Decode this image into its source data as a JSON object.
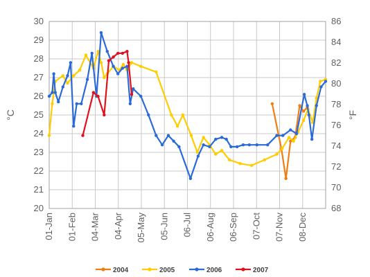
{
  "chart_data": {
    "type": "line",
    "title": "",
    "x_ticks": [
      "01-Jan",
      "01-Feb",
      "04-Mar",
      "04-Apr",
      "05-May",
      "05-Jun",
      "06-Jul",
      "06-Aug",
      "06-Sep",
      "07-Oct",
      "07-Nov",
      "08-Dec"
    ],
    "y_left": {
      "label": "°C",
      "min": 20,
      "max": 30,
      "ticks": [
        "20",
        "21",
        "22",
        "23",
        "24",
        "25",
        "26",
        "27",
        "28",
        "29",
        "30"
      ]
    },
    "y_right": {
      "label": "°F",
      "min": 68,
      "max": 86,
      "ticks": [
        "68",
        "70",
        "72",
        "74",
        "76",
        "78",
        "80",
        "82",
        "84",
        "86"
      ]
    },
    "grid": true,
    "legend_position": "bottom",
    "series": [
      {
        "name": "2004",
        "color": "#f07d12",
        "points": [
          [
            292,
            25.6
          ],
          [
            304,
            23.2
          ],
          [
            310,
            21.6
          ],
          [
            316,
            23.6
          ],
          [
            322,
            23.8
          ],
          [
            328,
            25.5
          ],
          [
            333,
            25.2
          ],
          [
            338,
            25.4
          ]
        ]
      },
      {
        "name": "2005",
        "color": "#ffcc00",
        "points": [
          [
            0,
            23.9
          ],
          [
            4,
            25.6
          ],
          [
            8,
            26.8
          ],
          [
            18,
            27.1
          ],
          [
            24,
            26.7
          ],
          [
            32,
            27.1
          ],
          [
            40,
            27.4
          ],
          [
            48,
            28.2
          ],
          [
            58,
            27.5
          ],
          [
            64,
            28.4
          ],
          [
            68,
            27.8
          ],
          [
            72,
            27.0
          ],
          [
            76,
            27.2
          ],
          [
            84,
            27.6
          ],
          [
            92,
            27.4
          ],
          [
            97,
            27.7
          ],
          [
            102,
            27.4
          ],
          [
            108,
            27.8
          ],
          [
            120,
            27.6
          ],
          [
            140,
            27.3
          ],
          [
            160,
            25.0
          ],
          [
            168,
            24.4
          ],
          [
            175,
            25.0
          ],
          [
            186,
            23.9
          ],
          [
            194,
            23.0
          ],
          [
            202,
            23.8
          ],
          [
            210,
            23.4
          ],
          [
            218,
            22.9
          ],
          [
            226,
            23.1
          ],
          [
            236,
            22.6
          ],
          [
            250,
            22.4
          ],
          [
            265,
            22.3
          ],
          [
            282,
            22.6
          ],
          [
            298,
            22.9
          ],
          [
            305,
            23.2
          ],
          [
            314,
            23.8
          ],
          [
            320,
            23.6
          ],
          [
            326,
            24.1
          ],
          [
            333,
            24.7
          ],
          [
            339,
            25.3
          ],
          [
            345,
            24.6
          ],
          [
            350,
            25.9
          ],
          [
            355,
            26.8
          ],
          [
            362,
            26.9
          ]
        ]
      },
      {
        "name": "2006",
        "color": "#2a6ad8",
        "points": [
          [
            0,
            26.0
          ],
          [
            4,
            26.2
          ],
          [
            6,
            27.2
          ],
          [
            8,
            26.2
          ],
          [
            12,
            25.7
          ],
          [
            18,
            26.5
          ],
          [
            24,
            27.1
          ],
          [
            28,
            27.8
          ],
          [
            32,
            24.4
          ],
          [
            36,
            25.6
          ],
          [
            42,
            25.6
          ],
          [
            50,
            26.9
          ],
          [
            56,
            28.3
          ],
          [
            62,
            26.0
          ],
          [
            68,
            29.4
          ],
          [
            76,
            28.4
          ],
          [
            84,
            27.6
          ],
          [
            90,
            27.2
          ],
          [
            96,
            27.5
          ],
          [
            102,
            27.6
          ],
          [
            106,
            25.6
          ],
          [
            110,
            26.4
          ],
          [
            120,
            26.0
          ],
          [
            130,
            25.0
          ],
          [
            140,
            23.9
          ],
          [
            148,
            23.4
          ],
          [
            156,
            23.9
          ],
          [
            163,
            23.6
          ],
          [
            170,
            23.3
          ],
          [
            185,
            21.6
          ],
          [
            195,
            22.8
          ],
          [
            202,
            23.4
          ],
          [
            210,
            23.3
          ],
          [
            218,
            23.7
          ],
          [
            226,
            23.8
          ],
          [
            232,
            23.7
          ],
          [
            238,
            23.3
          ],
          [
            246,
            23.3
          ],
          [
            254,
            23.4
          ],
          [
            262,
            23.4
          ],
          [
            272,
            23.4
          ],
          [
            286,
            23.4
          ],
          [
            298,
            23.9
          ],
          [
            306,
            23.9
          ],
          [
            316,
            24.2
          ],
          [
            324,
            24.0
          ],
          [
            334,
            26.1
          ],
          [
            338,
            25.5
          ],
          [
            340,
            25.0
          ],
          [
            344,
            23.7
          ],
          [
            350,
            25.5
          ],
          [
            356,
            26.5
          ],
          [
            362,
            26.8
          ]
        ]
      },
      {
        "name": "2007",
        "color": "#e0101c",
        "points": [
          [
            44,
            23.9
          ],
          [
            58,
            26.2
          ],
          [
            64,
            26.0
          ],
          [
            72,
            25.0
          ],
          [
            78,
            27.9
          ],
          [
            84,
            28.1
          ],
          [
            90,
            28.3
          ],
          [
            96,
            28.3
          ],
          [
            102,
            28.4
          ],
          [
            104,
            27.8
          ],
          [
            108,
            26.1
          ]
        ]
      }
    ]
  }
}
